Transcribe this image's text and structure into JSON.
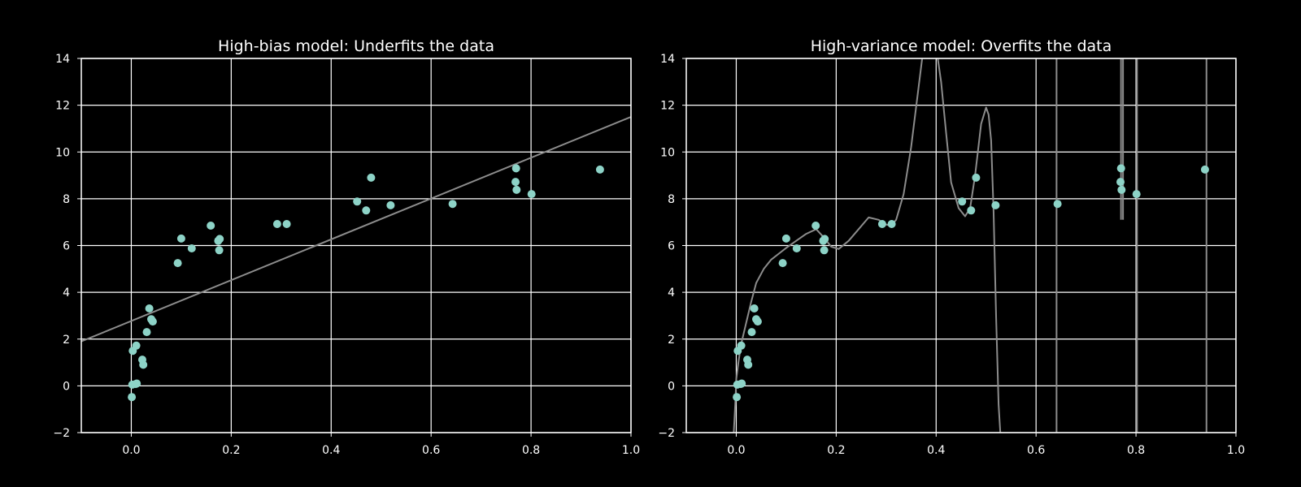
{
  "chart_data": [
    {
      "type": "scatter",
      "title": "High-bias model: Underfits the data",
      "xlabel": "",
      "ylabel": "",
      "xlim": [
        -0.1,
        1.0
      ],
      "ylim": [
        -2,
        14
      ],
      "xticks": [
        0.0,
        0.2,
        0.4,
        0.6,
        0.8,
        1.0
      ],
      "xtick_labels": [
        "0.0",
        "0.2",
        "0.4",
        "0.6",
        "0.8",
        "1.0"
      ],
      "yticks": [
        -2,
        0,
        2,
        4,
        6,
        8,
        10,
        12,
        14
      ],
      "ytick_labels": [
        "−2",
        "0",
        "2",
        "4",
        "6",
        "8",
        "10",
        "12",
        "14"
      ],
      "grid": true,
      "colors": {
        "background": "#000000",
        "axes": "#ffffff",
        "grid": "#ffffff",
        "points": "#8dd3c7",
        "model": "#8c8c8c"
      },
      "points": {
        "x": [
          0.001,
          0.002,
          0.003,
          0.009,
          0.01,
          0.011,
          0.022,
          0.024,
          0.031,
          0.036,
          0.04,
          0.043,
          0.093,
          0.1,
          0.121,
          0.159,
          0.174,
          0.176,
          0.177,
          0.292,
          0.311,
          0.452,
          0.47,
          0.48,
          0.519,
          0.643,
          0.769,
          0.77,
          0.771,
          0.801,
          0.938
        ],
        "y": [
          -0.48,
          0.05,
          1.5,
          0.08,
          1.72,
          0.1,
          1.12,
          0.9,
          2.3,
          3.31,
          2.85,
          2.75,
          5.25,
          6.3,
          5.88,
          6.85,
          6.2,
          5.8,
          6.28,
          6.92,
          6.92,
          7.88,
          7.5,
          8.9,
          7.72,
          7.78,
          8.72,
          9.3,
          8.38,
          8.2,
          9.25
        ]
      },
      "model": {
        "kind": "linear",
        "x": [
          -0.1,
          1.0
        ],
        "y": [
          1.9,
          11.5
        ]
      }
    },
    {
      "type": "scatter",
      "title": "High-variance model: Overfits the data",
      "xlabel": "",
      "ylabel": "",
      "xlim": [
        -0.1,
        1.0
      ],
      "ylim": [
        -2,
        14
      ],
      "xticks": [
        0.0,
        0.2,
        0.4,
        0.6,
        0.8,
        1.0
      ],
      "xtick_labels": [
        "0.0",
        "0.2",
        "0.4",
        "0.6",
        "0.8",
        "1.0"
      ],
      "yticks": [
        -2,
        0,
        2,
        4,
        6,
        8,
        10,
        12,
        14
      ],
      "ytick_labels": [
        "−2",
        "0",
        "2",
        "4",
        "6",
        "8",
        "10",
        "12",
        "14"
      ],
      "grid": true,
      "colors": {
        "background": "#000000",
        "axes": "#ffffff",
        "grid": "#ffffff",
        "points": "#8dd3c7",
        "model": "#8c8c8c"
      },
      "points": {
        "x": [
          0.001,
          0.002,
          0.003,
          0.009,
          0.01,
          0.011,
          0.022,
          0.024,
          0.031,
          0.036,
          0.04,
          0.043,
          0.093,
          0.1,
          0.121,
          0.159,
          0.174,
          0.176,
          0.177,
          0.292,
          0.311,
          0.452,
          0.47,
          0.48,
          0.519,
          0.643,
          0.769,
          0.77,
          0.771,
          0.801,
          0.938
        ],
        "y": [
          -0.48,
          0.05,
          1.5,
          0.08,
          1.72,
          0.1,
          1.12,
          0.9,
          2.3,
          3.31,
          2.85,
          2.75,
          5.25,
          6.3,
          5.88,
          6.85,
          6.2,
          5.8,
          6.28,
          6.92,
          6.92,
          7.88,
          7.5,
          8.9,
          7.72,
          7.78,
          8.72,
          9.3,
          8.38,
          8.2,
          9.25
        ]
      },
      "model": {
        "kind": "high-degree polynomial",
        "x": [
          -0.005,
          -0.002,
          0.0,
          0.005,
          0.01,
          0.02,
          0.03,
          0.04,
          0.055,
          0.07,
          0.085,
          0.1,
          0.12,
          0.14,
          0.16,
          0.175,
          0.19,
          0.205,
          0.225,
          0.245,
          0.265,
          0.285,
          0.3,
          0.31,
          0.32,
          0.335,
          0.35,
          0.365,
          0.375,
          0.39,
          0.402,
          0.41,
          0.42,
          0.43,
          0.445,
          0.458,
          0.468,
          0.478,
          0.49,
          0.5,
          0.505,
          0.51,
          0.515,
          0.52,
          0.525,
          0.5285
        ],
        "y": [
          -2.0,
          -0.8,
          0.3,
          1.1,
          1.8,
          2.7,
          3.6,
          4.4,
          5.0,
          5.4,
          5.65,
          5.9,
          6.2,
          6.5,
          6.7,
          6.35,
          5.95,
          5.85,
          6.2,
          6.7,
          7.2,
          7.1,
          6.9,
          6.85,
          7.1,
          8.2,
          10.2,
          12.8,
          14.5,
          14.6,
          14.2,
          13.0,
          10.8,
          8.7,
          7.6,
          7.25,
          7.6,
          9.0,
          11.2,
          11.9,
          11.6,
          10.5,
          7.5,
          3.0,
          -0.8,
          -2.0
        ],
        "spikes": [
          {
            "x": 0.641,
            "y_from": -2,
            "y_to": 14
          },
          {
            "x": 0.77,
            "y_from": 7.1,
            "y_to": 14
          },
          {
            "x": 0.774,
            "y_from": 7.1,
            "y_to": 14
          },
          {
            "x": 0.802,
            "y_from": -2,
            "y_to": 14
          },
          {
            "x": 0.941,
            "y_from": -2,
            "y_to": 14
          }
        ]
      }
    }
  ]
}
